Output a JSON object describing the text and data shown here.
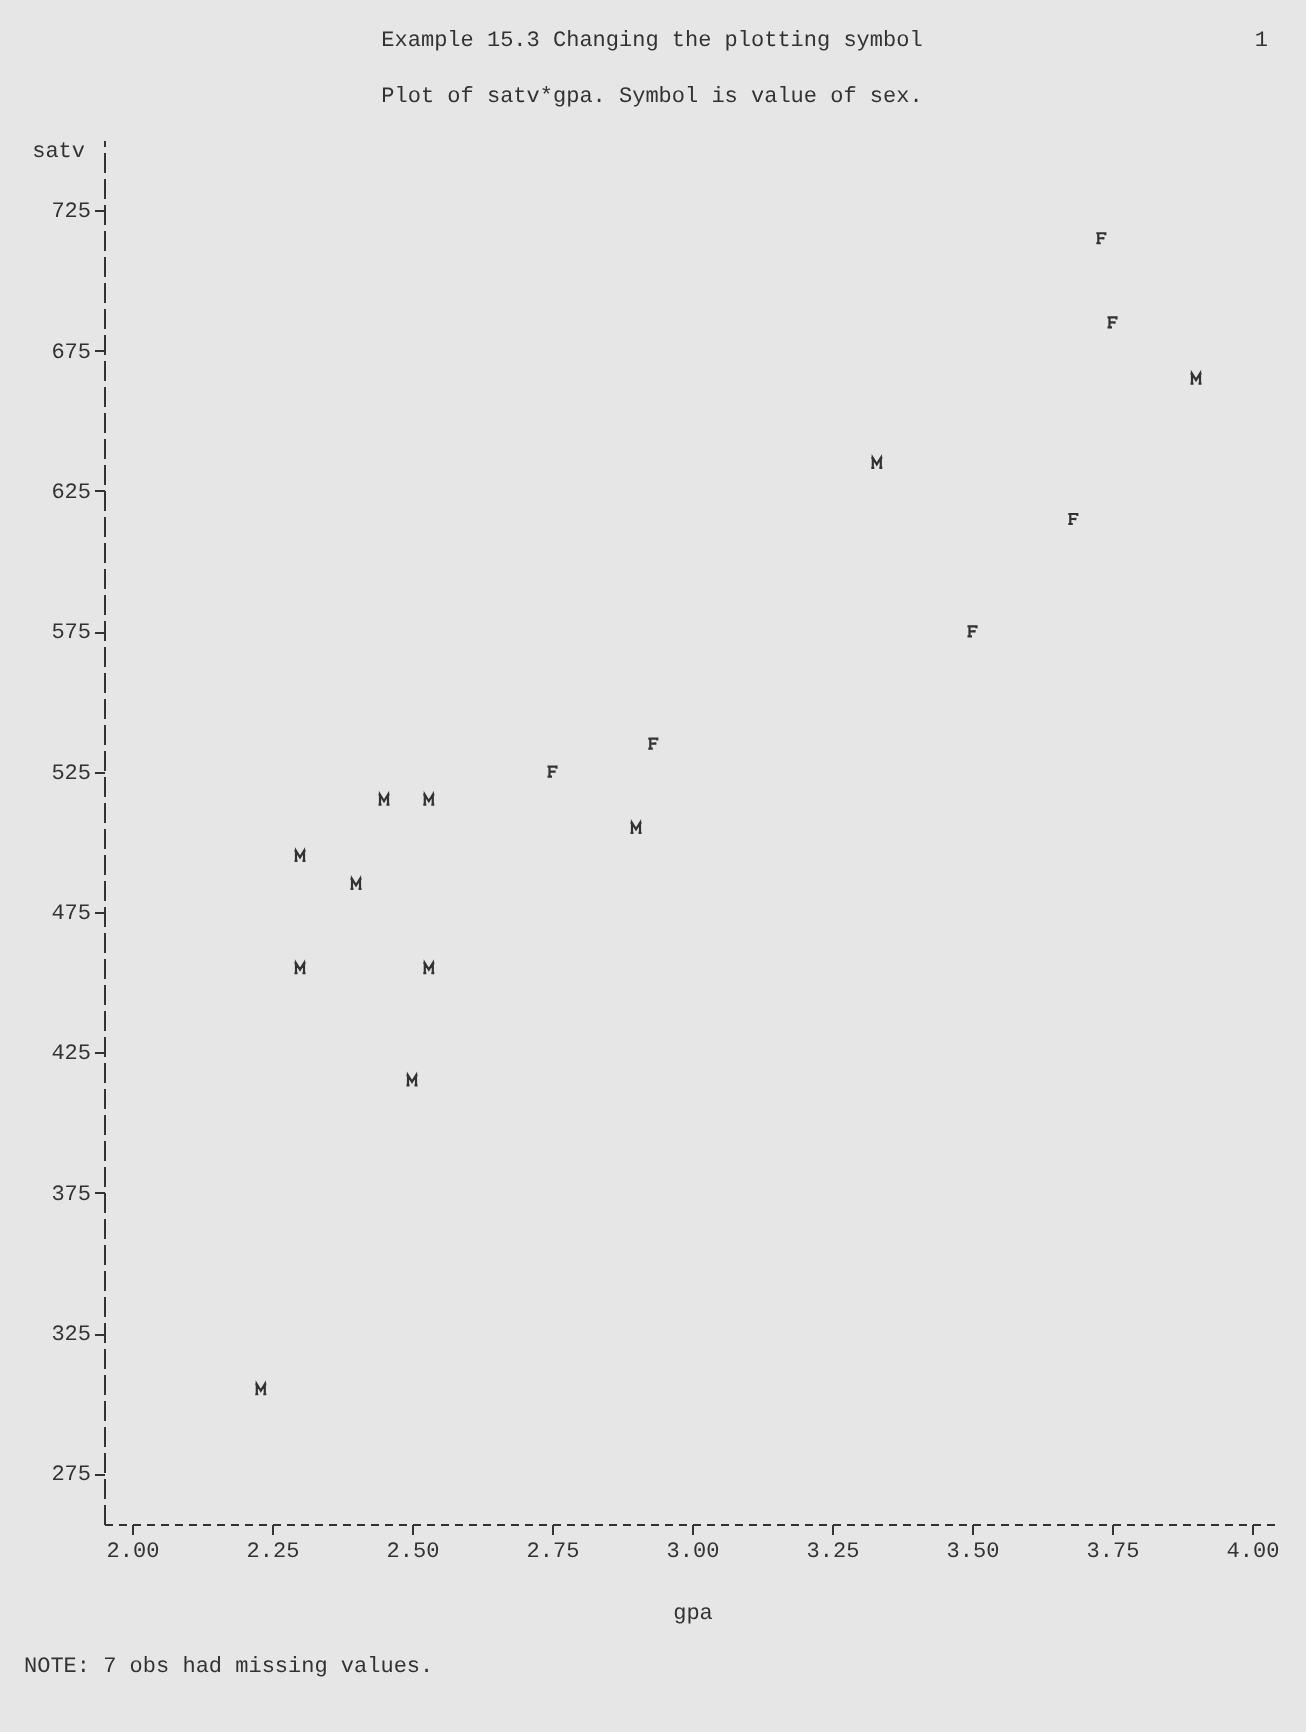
{
  "chart_data": {
    "type": "scatter",
    "title": "Example 15.3 Changing the plotting symbol",
    "subtitle": "Plot of satv*gpa.  Symbol is value of sex.",
    "xlabel": "gpa",
    "ylabel": "satv",
    "annotations": [
      "1",
      "NOTE: 7 obs had missing values."
    ],
    "xlim": [
      1.95,
      4.05
    ],
    "ylim": [
      257,
      750
    ],
    "xticks": [
      {
        "value": 2,
        "label": "2.00"
      },
      2.25,
      {
        "value": 2.5,
        "label": "2.50"
      },
      2.75,
      {
        "value": 3,
        "label": "3.00"
      },
      3.25,
      {
        "value": 3.5,
        "label": "3.50"
      },
      3.75,
      {
        "value": 4,
        "label": "4.00"
      }
    ],
    "yticks": [
      275,
      325,
      375,
      425,
      475,
      525,
      575,
      625,
      675,
      725
    ],
    "grid": false,
    "legend": false,
    "series": [
      {
        "color": "#333333",
        "x": [
          3.9,
          3.33,
          2.45,
          2.53,
          2.9,
          2.3,
          2.4,
          2.3,
          2.53,
          2.5,
          2.23
        ],
        "values": [
          665,
          635,
          515,
          515,
          505,
          495,
          485,
          455,
          455,
          415,
          305
        ]
      },
      {
        "color": "#333333",
        "x": [
          3.73,
          3.75,
          3.68,
          3.5,
          2.93,
          2.75
        ],
        "values": [
          715,
          685,
          615,
          575,
          535,
          525
        ]
      }
    ]
  }
}
